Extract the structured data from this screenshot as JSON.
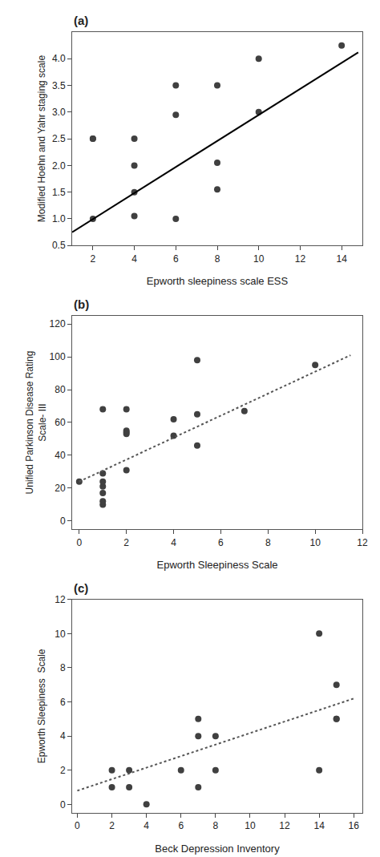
{
  "chart_data": [
    {
      "type": "scatter",
      "title": "(a)",
      "xlabel": "Epworth sleepiness scale ESS",
      "ylabel": "Modified Hoehn and Yahr staging scale",
      "xlim": [
        1,
        15
      ],
      "ylim": [
        0.5,
        4.5
      ],
      "xticks": [
        2,
        4,
        6,
        8,
        10,
        12,
        14
      ],
      "yticks": [
        0.5,
        {
          "value": 1.0,
          "label": "1.0"
        },
        1.5,
        {
          "value": 2.0,
          "label": "2.0"
        },
        2.5,
        {
          "value": 3.0,
          "label": "3.0"
        },
        3.5,
        {
          "value": 4.0,
          "label": "4.0"
        }
      ],
      "grid": false,
      "series": [
        {
          "type": "scatter",
          "marker": "circle",
          "color": "#404040",
          "x": [
            2,
            2,
            2,
            4,
            4,
            4,
            4,
            6,
            6,
            6,
            8,
            8,
            8,
            10,
            10,
            14
          ],
          "values": [
            1.0,
            2.5,
            2.5,
            1.05,
            1.5,
            2.0,
            2.5,
            1.0,
            2.95,
            3.5,
            1.55,
            2.05,
            3.5,
            3.0,
            4.0,
            4.25
          ]
        },
        {
          "type": "line",
          "line_style": "solid",
          "color": "#000000",
          "x": [
            1.0,
            14.8
          ],
          "values": [
            0.75,
            4.12
          ]
        }
      ]
    },
    {
      "type": "scatter",
      "title": "(b)",
      "xlabel": "Epworth Sleepiness Scale",
      "ylabel": "Unified Parkinson Disease Rating\nScale- III",
      "xlim": [
        -0.3,
        12
      ],
      "ylim": [
        -5,
        125
      ],
      "xticks": [
        0,
        2,
        4,
        6,
        8,
        10,
        12
      ],
      "yticks": [
        0,
        20,
        40,
        60,
        80,
        100,
        120
      ],
      "grid": false,
      "series": [
        {
          "type": "scatter",
          "marker": "circle",
          "color": "#404040",
          "x": [
            0,
            1,
            1,
            1,
            1,
            1,
            1,
            1,
            2,
            2,
            2,
            2,
            2,
            4,
            4,
            5,
            5,
            5,
            7,
            10
          ],
          "values": [
            24,
            68,
            10,
            12,
            17,
            21,
            24,
            29,
            31,
            53,
            54,
            55,
            68,
            62,
            52,
            65,
            98,
            46,
            67,
            95
          ]
        },
        {
          "type": "line",
          "line_style": "dotted",
          "color": "#555555",
          "x": [
            0,
            11.5
          ],
          "values": [
            24,
            101
          ]
        }
      ]
    },
    {
      "type": "scatter",
      "title": "(c)",
      "xlabel": "Beck Depression Inventory",
      "ylabel": "Epworth Sleepiness  Scale",
      "xlim": [
        -0.3,
        16.5
      ],
      "ylim": [
        -0.5,
        12
      ],
      "xticks": [
        0,
        2,
        4,
        6,
        8,
        10,
        12,
        14,
        16
      ],
      "yticks": [
        0,
        2,
        4,
        6,
        8,
        10,
        12
      ],
      "grid": false,
      "series": [
        {
          "type": "scatter",
          "marker": "circle",
          "color": "#404040",
          "x": [
            2,
            2,
            3,
            3,
            4,
            6,
            7,
            7,
            7,
            8,
            8,
            14,
            14,
            15,
            15,
            15
          ],
          "values": [
            1,
            2,
            1,
            2,
            0,
            2,
            5,
            4,
            1,
            4,
            2,
            10,
            2,
            7,
            5,
            5
          ]
        },
        {
          "type": "line",
          "line_style": "dotted",
          "color": "#555555",
          "x": [
            0,
            16
          ],
          "values": [
            0.8,
            6.2
          ]
        }
      ]
    }
  ]
}
